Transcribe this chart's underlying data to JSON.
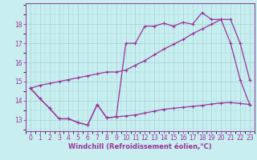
{
  "bg_color": "#c8eef0",
  "grid_color": "#a8d8d8",
  "line_color": "#993399",
  "xlabel": "Windchill (Refroidissement éolien,°C)",
  "xlabel_fontsize": 6.0,
  "tick_fontsize": 5.5,
  "ylabel_ticks": [
    13,
    14,
    15,
    16,
    17,
    18
  ],
  "xlim": [
    -0.5,
    23.5
  ],
  "ylim": [
    12.4,
    19.1
  ],
  "x_ticks": [
    0,
    1,
    2,
    3,
    4,
    5,
    6,
    7,
    8,
    9,
    10,
    11,
    12,
    13,
    14,
    15,
    16,
    17,
    18,
    19,
    20,
    21,
    22,
    23
  ],
  "line1_x": [
    0,
    1,
    2,
    3,
    4,
    5,
    6,
    7,
    8,
    9,
    10,
    11,
    12,
    13,
    14,
    15,
    16,
    17,
    18,
    19,
    20,
    21,
    22,
    23
  ],
  "line1_y": [
    14.65,
    14.1,
    13.6,
    13.05,
    13.05,
    12.85,
    12.72,
    13.8,
    13.1,
    13.15,
    17.0,
    17.0,
    17.9,
    17.9,
    18.05,
    17.9,
    18.1,
    18.0,
    18.6,
    18.25,
    18.25,
    17.0,
    15.1,
    13.8
  ],
  "line2_x": [
    0,
    1,
    2,
    3,
    4,
    5,
    6,
    7,
    8,
    9,
    10,
    11,
    12,
    13,
    14,
    15,
    16,
    17,
    18,
    19,
    20,
    21,
    22,
    23
  ],
  "line2_y": [
    14.65,
    14.8,
    14.9,
    15.0,
    15.1,
    15.2,
    15.3,
    15.4,
    15.5,
    15.5,
    15.6,
    15.85,
    16.1,
    16.4,
    16.7,
    16.95,
    17.2,
    17.5,
    17.75,
    18.0,
    18.25,
    18.25,
    17.0,
    15.1
  ],
  "line3_x": [
    0,
    1,
    2,
    3,
    4,
    5,
    6,
    7,
    8,
    9,
    10,
    11,
    12,
    13,
    14,
    15,
    16,
    17,
    18,
    19,
    20,
    21,
    22,
    23
  ],
  "line3_y": [
    14.65,
    14.1,
    13.6,
    13.05,
    13.05,
    12.85,
    12.72,
    13.8,
    13.1,
    13.15,
    13.2,
    13.25,
    13.35,
    13.45,
    13.55,
    13.6,
    13.65,
    13.7,
    13.75,
    13.82,
    13.88,
    13.9,
    13.85,
    13.8
  ]
}
